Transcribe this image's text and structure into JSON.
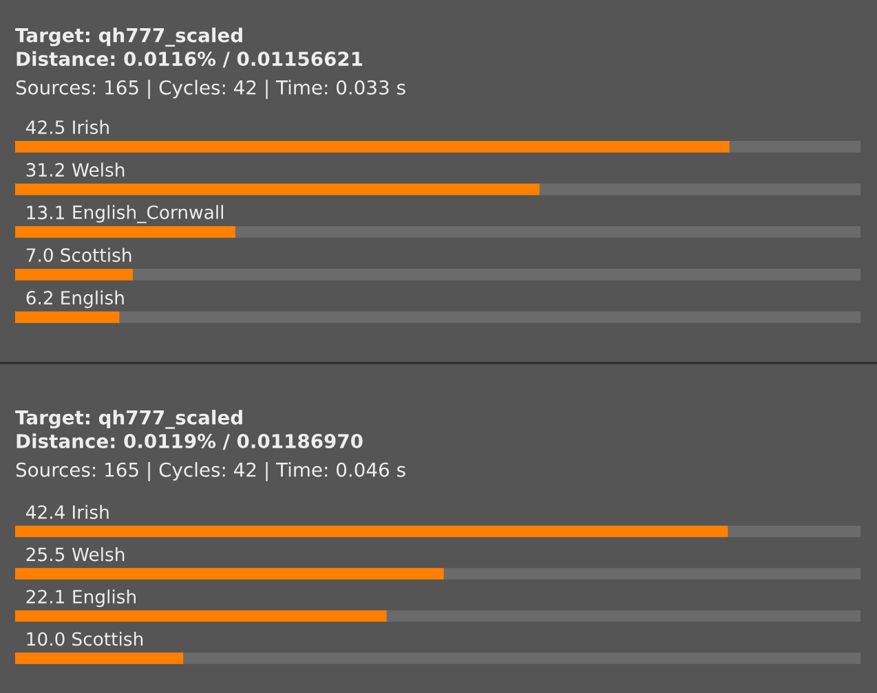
{
  "chart_data": [
    {
      "type": "bar",
      "orientation": "horizontal",
      "title": "Target: qh777_scaled",
      "subtitle": "Distance: 0.0116% / 0.01156621",
      "annotations": [
        "Sources: 165 | Cycles: 42 | Time: 0.033 s"
      ],
      "categories": [
        "Irish",
        "Welsh",
        "English_Cornwall",
        "Scottish",
        "English"
      ],
      "values": [
        42.5,
        31.2,
        13.1,
        7.0,
        6.2
      ],
      "value_labels": [
        "42.5",
        "31.2",
        "13.1",
        "7.0",
        "6.2"
      ],
      "color": "#ff8000",
      "tick_labels": false,
      "legend": false
    },
    {
      "type": "bar",
      "orientation": "horizontal",
      "title": "Target: qh777_scaled",
      "subtitle": "Distance: 0.0119% / 0.01186970",
      "annotations": [
        "Sources: 165 | Cycles: 42 | Time: 0.046 s"
      ],
      "categories": [
        "Irish",
        "Welsh",
        "English",
        "Scottish"
      ],
      "values": [
        42.4,
        25.5,
        22.1,
        10.0
      ],
      "value_labels": [
        "42.4",
        "25.5",
        "22.1",
        "10.0"
      ],
      "color": "#ff8000",
      "tick_labels": false,
      "legend": false
    }
  ]
}
